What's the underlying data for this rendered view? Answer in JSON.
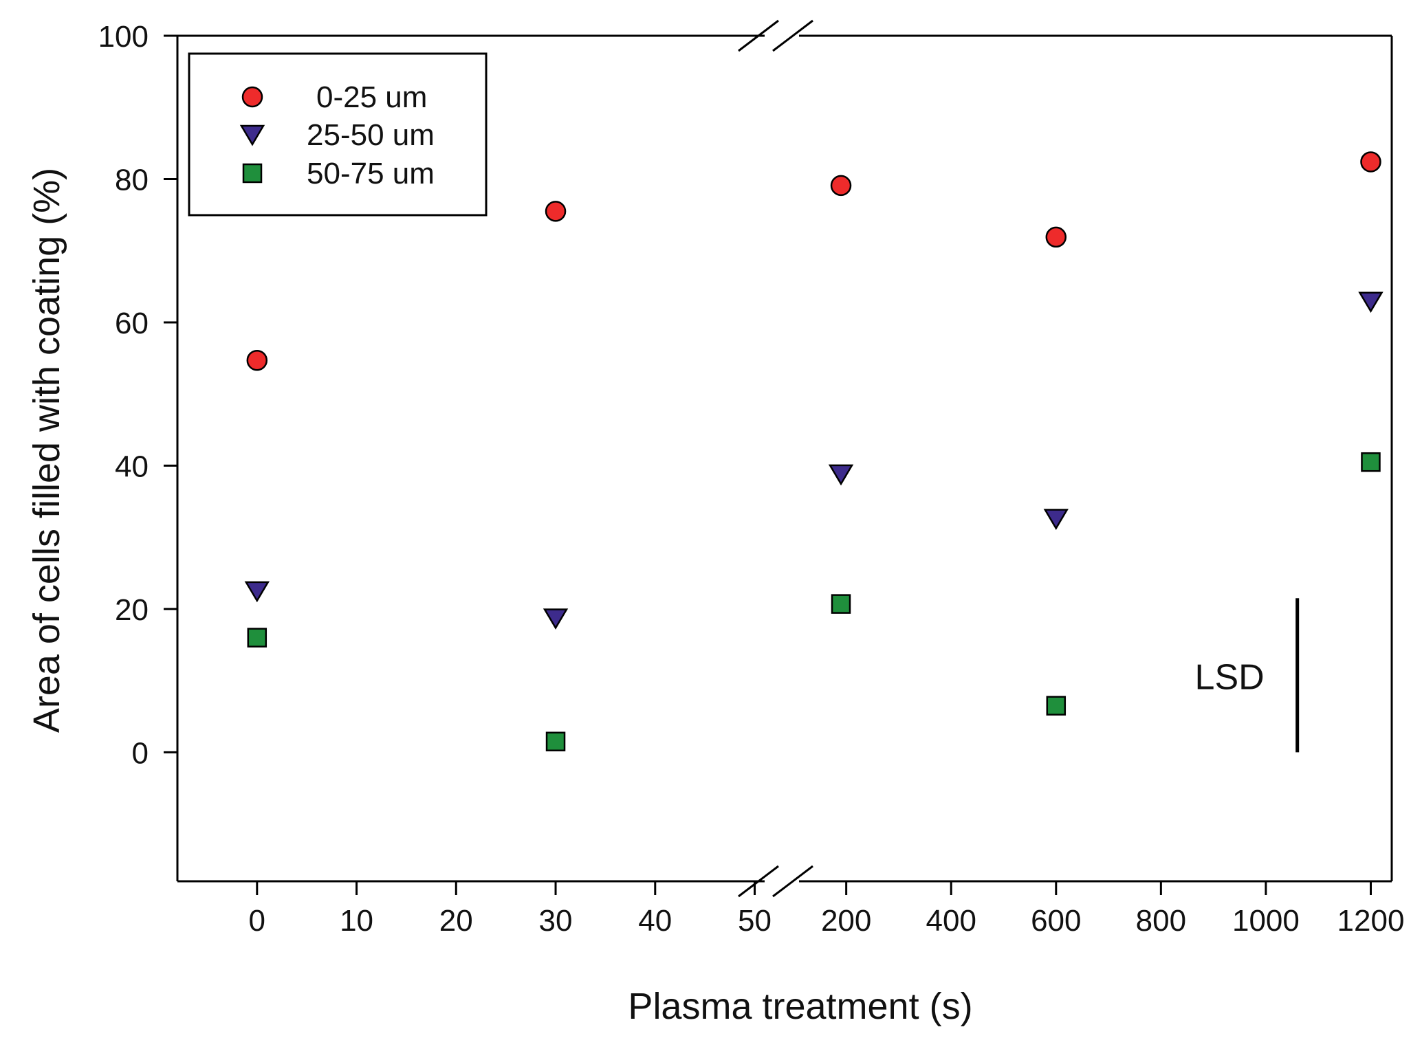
{
  "chart_data": {
    "type": "scatter",
    "title": "",
    "xlabel": "Plasma treatment (s)",
    "ylabel": "Area of cells filled with coating (%)",
    "ylim": [
      -18,
      100
    ],
    "yticks": [
      0,
      20,
      40,
      60,
      80,
      100
    ],
    "broken_x_axis": true,
    "x_segments": [
      {
        "range": [
          -8,
          51
        ],
        "ticks": [
          0,
          10,
          20,
          30,
          40,
          50
        ]
      },
      {
        "range": [
          110,
          1240
        ],
        "ticks": [
          200,
          400,
          600,
          800,
          1000,
          1200
        ]
      }
    ],
    "legend_position": "top-left",
    "series": [
      {
        "name": "0-25 um",
        "marker": "circle",
        "color": "#ee2b2b",
        "points": [
          {
            "x": 0,
            "y": 54.7
          },
          {
            "x": 30,
            "y": 75.5
          },
          {
            "x": 190,
            "y": 79.1
          },
          {
            "x": 600,
            "y": 71.9
          },
          {
            "x": 1200,
            "y": 82.4
          }
        ]
      },
      {
        "name": "25-50 um",
        "marker": "triangle-down",
        "color": "#3d2b8c",
        "points": [
          {
            "x": 0,
            "y": 22.5
          },
          {
            "x": 30,
            "y": 18.7
          },
          {
            "x": 190,
            "y": 38.8
          },
          {
            "x": 600,
            "y": 32.6
          },
          {
            "x": 1200,
            "y": 62.9
          }
        ]
      },
      {
        "name": "50-75 um",
        "marker": "square",
        "color": "#1f8f3c",
        "points": [
          {
            "x": 0,
            "y": 16.0
          },
          {
            "x": 30,
            "y": 1.5
          },
          {
            "x": 190,
            "y": 20.7
          },
          {
            "x": 600,
            "y": 6.5
          },
          {
            "x": 1200,
            "y": 40.5
          }
        ]
      }
    ],
    "annotations": [
      {
        "type": "lsd-bar",
        "label": "LSD",
        "x": 1060,
        "y_range": [
          0,
          21.5
        ]
      }
    ]
  }
}
